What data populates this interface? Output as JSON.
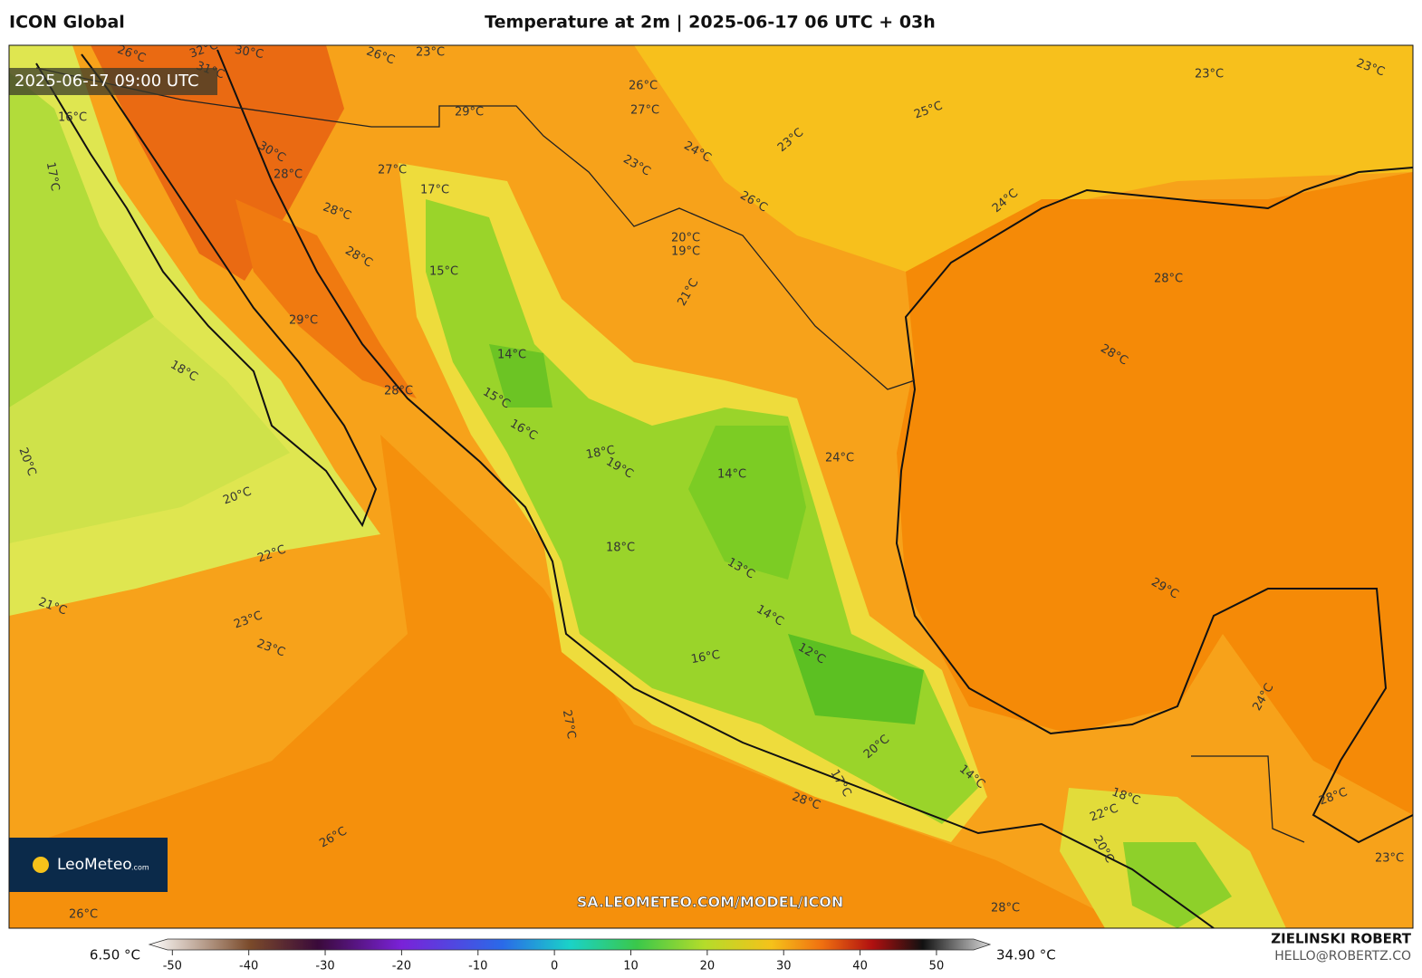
{
  "header": {
    "model": "ICON Global",
    "title": "Temperature at 2m | 2025-06-17 06 UTC + 03h"
  },
  "map": {
    "valid_time": "2025-06-17 09:00 UTC",
    "watermark": "SA.LEOMETEO.COM/MODEL/ICON",
    "logo": "LeoMeteo",
    "logo_suffix": ".com",
    "contour_labels": [
      "26°C",
      "32°C",
      "30°C",
      "31°C",
      "26°C",
      "23°C",
      "26°C",
      "27°C",
      "29°C",
      "25°C",
      "23°C",
      "23°C",
      "16°C",
      "17°C",
      "30°C",
      "28°C",
      "27°C",
      "23°C",
      "24°C",
      "23°C",
      "26°C",
      "24°C",
      "28°C",
      "28°C",
      "17°C",
      "28°C",
      "28°C",
      "15°C",
      "20°C",
      "19°C",
      "21°C",
      "29°C",
      "18°C",
      "14°C",
      "28°C",
      "15°C",
      "16°C",
      "20°C",
      "18°C",
      "19°C",
      "14°C",
      "24°C",
      "20°C",
      "22°C",
      "18°C",
      "13°C",
      "21°C",
      "23°C",
      "23°C",
      "14°C",
      "29°C",
      "16°C",
      "12°C",
      "27°C",
      "24°C",
      "20°C",
      "17°C",
      "14°C",
      "28°C",
      "22°C",
      "18°C",
      "28°C",
      "26°C",
      "20°C",
      "26°C",
      "28°C",
      "23°C"
    ]
  },
  "colorbar": {
    "min_label": "6.50 °C",
    "max_label": "34.90 °C",
    "lim": [
      -53,
      57
    ],
    "ticks": [
      -50,
      -40,
      -30,
      -20,
      -10,
      0,
      10,
      20,
      30,
      40,
      50
    ]
  },
  "credit": {
    "author": "ZIELINSKI ROBERT",
    "contact": "HELLO@ROBERTZ.CO"
  }
}
